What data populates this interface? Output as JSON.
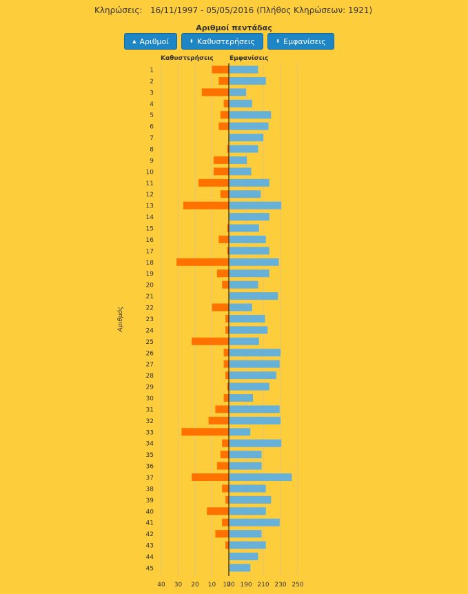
{
  "header": {
    "label": "Κληρώσεις:",
    "range": "16/11/1997 - 05/05/2016  (Πλήθος Κληρώσεων: 1921)"
  },
  "controls": [
    {
      "label": "Αριθμοί",
      "icon": "sort-asc-icon"
    },
    {
      "label": "Καθυστερήσεις",
      "icon": "sort-icon"
    },
    {
      "label": "Εμφανίσεις",
      "icon": "sort-icon"
    }
  ],
  "colors": {
    "delay": "#ff7200",
    "appear": "#67b0d8",
    "bg": "#fecd3c",
    "grid": "#e0c27a"
  },
  "chart_data": {
    "type": "bar",
    "title": "Αριθμοί πεντάδας",
    "ylabel": "Αριθμός",
    "left_label": "Καθυστερήσεις",
    "right_label": "Εμφανίσεις",
    "categories": [
      "1",
      "2",
      "3",
      "4",
      "5",
      "6",
      "7",
      "8",
      "9",
      "10",
      "11",
      "12",
      "13",
      "14",
      "15",
      "16",
      "17",
      "18",
      "19",
      "20",
      "21",
      "22",
      "23",
      "24",
      "25",
      "26",
      "27",
      "28",
      "29",
      "30",
      "31",
      "32",
      "33",
      "34",
      "35",
      "36",
      "37",
      "38",
      "39",
      "40",
      "41",
      "42",
      "43",
      "44",
      "45"
    ],
    "left_axis": {
      "ticks": [
        40,
        30,
        20,
        10,
        0
      ],
      "tick_labels": [
        "40",
        "30",
        "20",
        "10",
        "0"
      ]
    },
    "right_axis": {
      "ticks": [
        170,
        190,
        210,
        230,
        250
      ],
      "tick_labels": [
        "170",
        "190",
        "210",
        "230",
        "250"
      ]
    },
    "series": [
      {
        "name": "Καθυστερήσεις",
        "values": [
          10,
          6,
          16,
          3,
          5,
          6,
          0,
          1,
          9,
          9,
          18,
          5,
          27,
          0,
          1,
          6,
          1,
          31,
          7,
          4,
          0,
          10,
          2,
          2,
          22,
          3,
          3,
          2,
          1,
          3,
          8,
          12,
          28,
          4,
          5,
          7,
          22,
          4,
          2,
          13,
          4,
          8,
          2,
          0,
          0
        ]
      },
      {
        "name": "Εμφανίσεις",
        "values": [
          204,
          213,
          190,
          197,
          219,
          216,
          210,
          204,
          191,
          196,
          217,
          207,
          231,
          217,
          205,
          213,
          217,
          228,
          217,
          204,
          227,
          197,
          212,
          215,
          205,
          230,
          229,
          225,
          217,
          198,
          229,
          230,
          195,
          231,
          208,
          208,
          243,
          213,
          219,
          213,
          229,
          208,
          213,
          204,
          195
        ]
      }
    ]
  }
}
